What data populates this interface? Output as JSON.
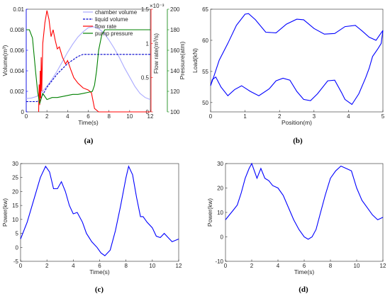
{
  "chart_data": [
    {
      "id": "a",
      "caption": "(a)",
      "type": "line",
      "xlabel": "Time(s)",
      "xlim": [
        0,
        12
      ],
      "xticks": [
        0,
        2,
        4,
        6,
        8,
        10,
        12
      ],
      "axes": {
        "volume": {
          "label": "Volume(m³)",
          "lim": [
            0,
            0.01
          ],
          "ticks": [
            "0",
            "0.002",
            "0.004",
            "0.006",
            "0.008",
            "0.01"
          ],
          "tick_values": [
            0,
            0.002,
            0.004,
            0.006,
            0.008,
            0.01
          ],
          "color": "#0000ff"
        },
        "flow": {
          "label": "Flow rate(m³/s)",
          "lim": [
            0,
            0.0015
          ],
          "ticks": [
            "0",
            "0.5",
            "1",
            "1.5"
          ],
          "tick_values": [
            0,
            0.0005,
            0.001,
            0.0015
          ],
          "exponent": "×10⁻³",
          "color": "#ff0000"
        },
        "pressure": {
          "label": "Pressure(atm)",
          "lim": [
            100,
            200
          ],
          "ticks": [
            "100",
            "120",
            "140",
            "160",
            "180",
            "200"
          ],
          "tick_values": [
            100,
            120,
            140,
            160,
            180,
            200
          ],
          "color": "#008000"
        }
      },
      "legend": [
        "chamber volume",
        "liquid volume",
        "flow rate",
        "pump pressure"
      ],
      "series": [
        {
          "name": "chamber volume",
          "axis": "volume",
          "color": "#aaaaff",
          "x": [
            0,
            0.5,
            1,
            1.5,
            2,
            2.5,
            3,
            3.5,
            4,
            4.5,
            5,
            5.5,
            6,
            6.5,
            7,
            7.5,
            8,
            8.5,
            9,
            9.5,
            10,
            10.5,
            11,
            11.5,
            12
          ],
          "y": [
            0.0013,
            0.00135,
            0.0015,
            0.0019,
            0.0025,
            0.0032,
            0.004,
            0.0049,
            0.0058,
            0.0066,
            0.0073,
            0.0078,
            0.0082,
            0.0083,
            0.0081,
            0.0077,
            0.007,
            0.0062,
            0.0053,
            0.0043,
            0.0034,
            0.0025,
            0.0018,
            0.0014,
            0.0012
          ]
        },
        {
          "name": "liquid volume",
          "axis": "volume",
          "color": "#0000cc",
          "dashed": true,
          "x": [
            0,
            1,
            1.3,
            1.5,
            2,
            3,
            4,
            5,
            5.5,
            6,
            6.5,
            7,
            8,
            9,
            10,
            11,
            12
          ],
          "y": [
            0.001,
            0.001,
            0.0011,
            0.0015,
            0.0024,
            0.0037,
            0.0047,
            0.0054,
            0.0056,
            0.0056,
            0.0056,
            0.0056,
            0.0056,
            0.0056,
            0.0056,
            0.0056,
            0.0056
          ]
        },
        {
          "name": "flow rate",
          "axis": "flow",
          "color": "#ff0000",
          "x": [
            1.2,
            1.25,
            1.3,
            1.35,
            1.4,
            1.45,
            1.5,
            1.6,
            1.8,
            2.0,
            2.2,
            2.4,
            2.6,
            2.8,
            3.0,
            3.2,
            3.5,
            3.8,
            4.0,
            4.3,
            4.6,
            5.0,
            5.5,
            6.0,
            6.3,
            6.6,
            7.0,
            8.0,
            10.0,
            12.0
          ],
          "y": [
            0,
            0.0004,
            0.0001,
            0.0006,
            0.0002,
            0.0008,
            0.0003,
            0.001,
            0.0013,
            0.00148,
            0.00135,
            0.0011,
            0.0012,
            0.00105,
            0.00092,
            0.00095,
            0.0008,
            0.0007,
            0.00075,
            0.00062,
            0.0005,
            0.00042,
            0.00035,
            0.00032,
            0.00028,
            5e-05,
            0.0,
            0.0,
            0.0,
            0.0
          ]
        },
        {
          "name": "pump pressure",
          "axis": "pressure",
          "color": "#008000",
          "x": [
            0,
            0.3,
            0.6,
            0.9,
            1.1,
            1.3,
            1.6,
            2.0,
            2.5,
            3.0,
            3.5,
            4.0,
            4.5,
            5.0,
            5.5,
            6.0,
            6.4,
            6.6,
            6.8,
            7.0,
            7.3,
            7.6,
            8.0,
            8.5,
            9.0,
            10.0,
            11.0,
            12.0
          ],
          "y": [
            180,
            180,
            172,
            140,
            120,
            108,
            118,
            112,
            114,
            114,
            115,
            116,
            117,
            117,
            118,
            119,
            120,
            126,
            140,
            160,
            175,
            180,
            180,
            180,
            180,
            180,
            180,
            180
          ]
        }
      ]
    },
    {
      "id": "b",
      "caption": "(b)",
      "type": "line",
      "xlabel": "Position(m)",
      "ylabel": "Load(kN)",
      "xlim": [
        0,
        5
      ],
      "ylim": [
        48.5,
        65
      ],
      "xticks": [
        0,
        1,
        2,
        3,
        4,
        5
      ],
      "yticks": [
        50,
        55,
        60,
        65
      ],
      "series": [
        {
          "color": "#0000ff",
          "x": [
            0.0,
            0.1,
            0.25,
            0.5,
            0.75,
            1.0,
            1.1,
            1.3,
            1.6,
            1.9,
            2.2,
            2.5,
            2.7,
            3.0,
            3.3,
            3.6,
            3.9,
            4.2,
            4.4,
            4.6,
            4.8,
            4.9,
            5.0,
            4.95,
            4.85,
            4.7,
            4.6,
            4.5,
            4.3,
            4.1,
            3.9,
            3.8,
            3.6,
            3.4,
            3.1,
            2.9,
            2.7,
            2.5,
            2.3,
            2.1,
            1.9,
            1.7,
            1.4,
            1.15,
            0.9,
            0.7,
            0.5,
            0.3,
            0.15,
            0.05,
            0.0
          ],
          "y": [
            52.7,
            54.3,
            56.8,
            59.5,
            62.4,
            64.2,
            64.3,
            63.3,
            61.3,
            61.2,
            62.6,
            63.4,
            63.3,
            61.9,
            61.0,
            61.1,
            62.2,
            62.4,
            61.5,
            60.5,
            60.0,
            60.8,
            61.6,
            59.5,
            58.6,
            57.4,
            55.5,
            54.0,
            51.4,
            49.7,
            50.5,
            51.6,
            53.6,
            53.5,
            51.4,
            50.3,
            50.5,
            51.8,
            53.6,
            53.9,
            53.5,
            52.2,
            51.1,
            51.8,
            52.7,
            52.1,
            51.1,
            52.5,
            54.1,
            53.7,
            52.7
          ]
        }
      ]
    },
    {
      "id": "c",
      "caption": "(c)",
      "type": "line",
      "xlabel": "Time(s)",
      "ylabel": "Power(kw)",
      "xlim": [
        0,
        12
      ],
      "ylim": [
        -5,
        30
      ],
      "xticks": [
        0,
        2,
        4,
        6,
        8,
        10,
        12
      ],
      "yticks": [
        -5,
        0,
        5,
        10,
        15,
        20,
        25,
        30
      ],
      "series": [
        {
          "color": "#0000ff",
          "x": [
            0,
            0.5,
            1.0,
            1.5,
            1.9,
            2.2,
            2.5,
            2.8,
            3.1,
            3.4,
            3.7,
            4.0,
            4.3,
            4.7,
            5.0,
            5.4,
            5.8,
            6.1,
            6.4,
            6.8,
            7.2,
            7.6,
            8.0,
            8.2,
            8.5,
            8.8,
            9.1,
            9.3,
            9.6,
            10.0,
            10.3,
            10.6,
            10.9,
            11.2,
            11.5,
            12.0
          ],
          "y": [
            3,
            9,
            17,
            25,
            29,
            27,
            21,
            21,
            23.5,
            20,
            15,
            12,
            12.5,
            9,
            5,
            2,
            0,
            -2,
            -3,
            -1,
            6,
            15,
            25,
            29,
            26,
            18,
            11,
            11,
            9,
            7,
            4,
            3.5,
            5,
            3.5,
            2,
            3
          ]
        }
      ]
    },
    {
      "id": "d",
      "caption": "(d)",
      "type": "line",
      "xlabel": "Time(s)",
      "ylabel": "Power(kw)",
      "xlim": [
        0,
        12
      ],
      "ylim": [
        -10,
        30
      ],
      "xticks": [
        0,
        2,
        4,
        6,
        8,
        10,
        12
      ],
      "yticks": [
        -10,
        0,
        10,
        20,
        30
      ],
      "series": [
        {
          "color": "#0000ff",
          "x": [
            0,
            0.3,
            0.6,
            0.9,
            1.2,
            1.5,
            1.8,
            2.0,
            2.2,
            2.4,
            2.7,
            3.0,
            3.3,
            3.6,
            4.0,
            4.4,
            4.8,
            5.2,
            5.6,
            6.0,
            6.3,
            6.6,
            6.9,
            7.2,
            7.6,
            8.0,
            8.4,
            8.8,
            9.2,
            9.6,
            10.0,
            10.4,
            10.8,
            11.2,
            11.6,
            12.0
          ],
          "y": [
            7,
            9,
            11,
            13,
            18,
            24,
            28,
            30,
            27,
            24,
            28,
            24,
            23,
            21,
            20,
            17,
            12,
            7,
            3,
            0,
            -1,
            0,
            3,
            9,
            17,
            24,
            27,
            29,
            28,
            27,
            20,
            15,
            12,
            9,
            7,
            8
          ]
        }
      ]
    }
  ]
}
